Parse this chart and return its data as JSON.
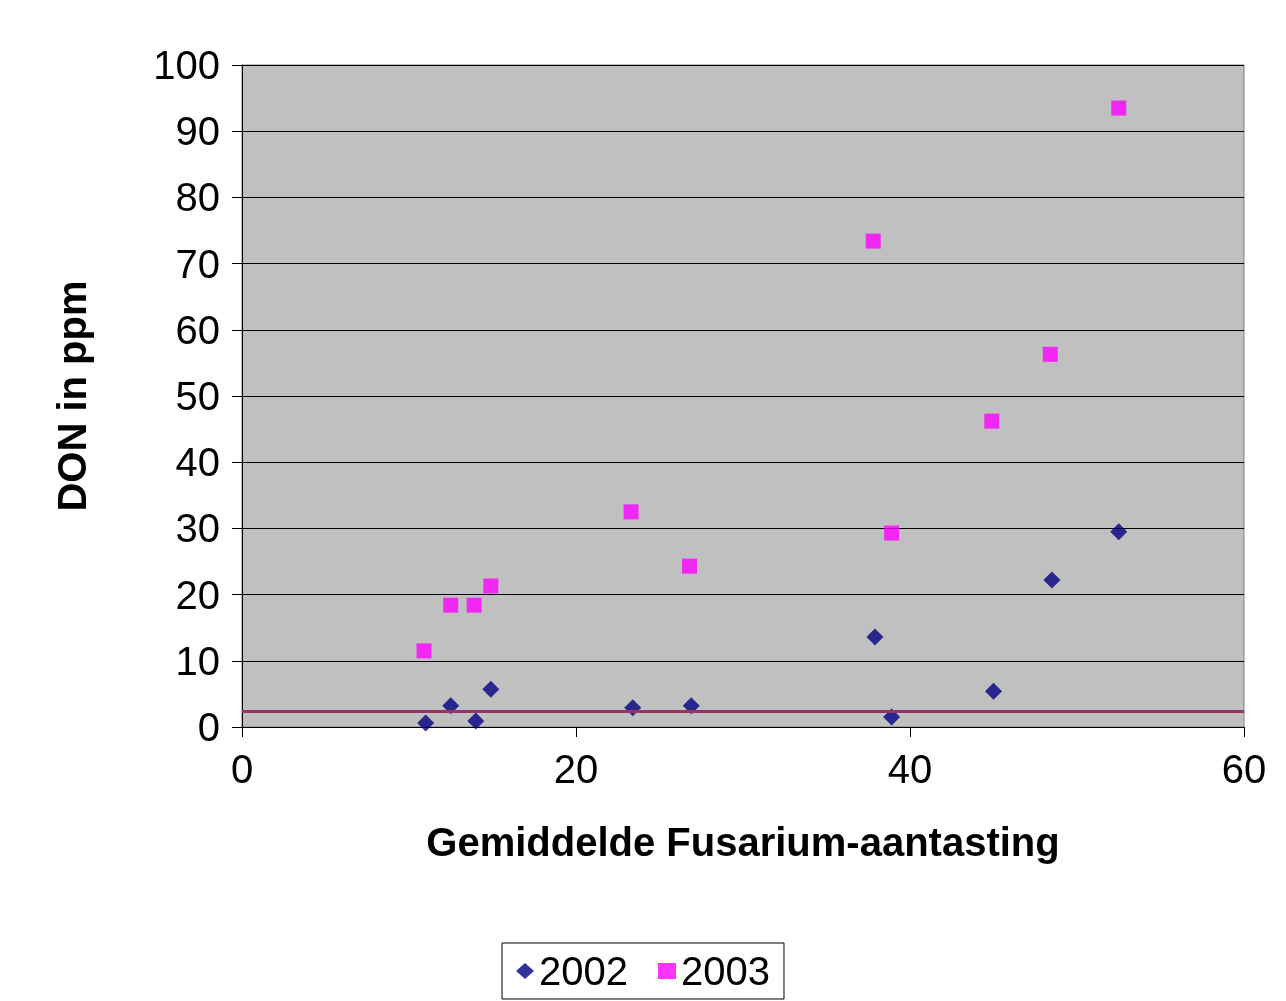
{
  "chart_data": {
    "type": "scatter",
    "xlabel": "Gemiddelde Fusarium-aantasting",
    "ylabel": "DON in ppm",
    "series": [
      {
        "name": "2002",
        "color": "#000080",
        "marker": "diamond",
        "x": [
          11.0,
          12.5,
          14.0,
          14.9,
          23.4,
          26.9,
          37.9,
          38.9,
          45.0,
          48.5,
          52.5
        ],
        "values": [
          0.6,
          3.2,
          0.9,
          5.7,
          2.9,
          3.2,
          13.6,
          1.5,
          5.4,
          22.2,
          29.5
        ]
      },
      {
        "name": "2003",
        "color": "#ff00ff",
        "marker": "square",
        "x": [
          10.9,
          12.5,
          13.9,
          14.9,
          23.3,
          26.8,
          37.8,
          38.9,
          44.9,
          48.4,
          52.5
        ],
        "values": [
          11.5,
          18.4,
          18.4,
          21.3,
          32.5,
          24.3,
          73.4,
          29.3,
          46.2,
          56.3,
          93.5
        ]
      }
    ],
    "xlim": [
      0,
      60
    ],
    "xticks": [
      0,
      20,
      40,
      60
    ],
    "ylim": [
      0,
      100
    ],
    "yticks": [
      0,
      10,
      20,
      30,
      40,
      50,
      60,
      70,
      80,
      90,
      100
    ],
    "ref_lines": [
      {
        "axis": "y",
        "value": 2.4,
        "color": "#993366",
        "line_style": "solid"
      }
    ],
    "grid": "y",
    "legend": "bottom"
  }
}
